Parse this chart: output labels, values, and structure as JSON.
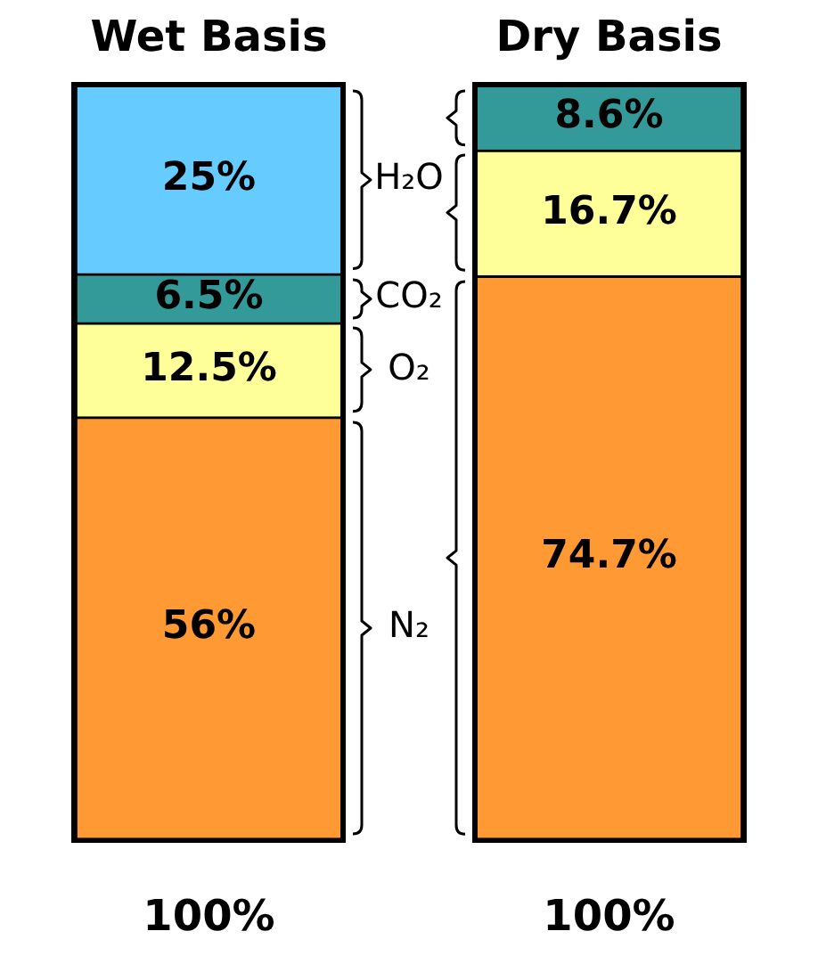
{
  "chart_data": {
    "type": "bar",
    "stacked": true,
    "categories": [
      "Wet Basis",
      "Dry Basis"
    ],
    "series": [
      {
        "name": "N₂",
        "color": "#ff9933",
        "values": [
          56,
          74.7
        ],
        "value_labels": [
          "56%",
          "74.7%"
        ]
      },
      {
        "name": "O₂",
        "color": "#ffff99",
        "values": [
          12.5,
          16.7
        ],
        "value_labels": [
          "12.5%",
          "16.7%"
        ]
      },
      {
        "name": "CO₂",
        "color": "#339999",
        "values": [
          6.5,
          8.6
        ],
        "value_labels": [
          "6.5%",
          "8.6%"
        ]
      },
      {
        "name": "H₂O",
        "color": "#66ccff",
        "values": [
          25,
          null
        ],
        "value_labels": [
          "25%",
          null
        ]
      }
    ],
    "totals": [
      "100%",
      "100%"
    ]
  }
}
